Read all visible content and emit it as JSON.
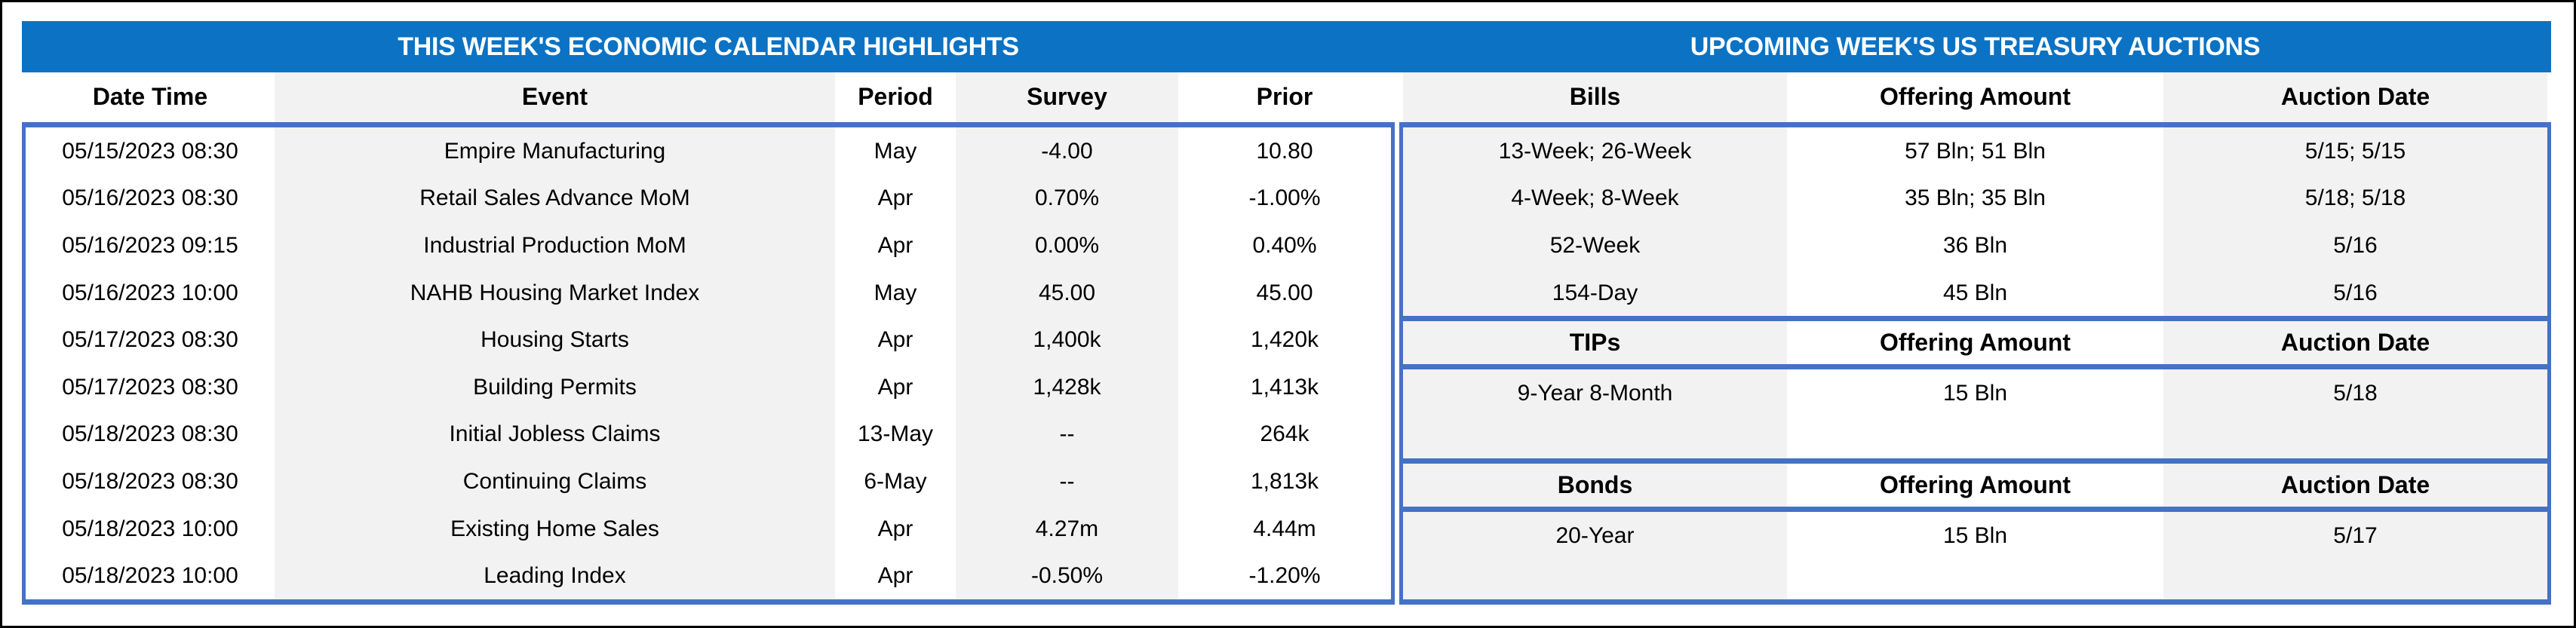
{
  "colors": {
    "title_bar_blue": "#0B72C4",
    "table_border_blue": "#4472C4",
    "stripe_gray": "#F2F2F2",
    "title_text": "#FFFFFF",
    "body_text": "#000000",
    "outer_frame": "#000000"
  },
  "left_table": {
    "title": "THIS WEEK'S ECONOMIC CALENDAR HIGHLIGHTS",
    "columns": [
      "Date Time",
      "Event",
      "Period",
      "Survey",
      "Prior"
    ],
    "rows": [
      [
        "05/15/2023 08:30",
        "Empire Manufacturing",
        "May",
        "-4.00",
        "10.80"
      ],
      [
        "05/16/2023 08:30",
        "Retail Sales Advance MoM",
        "Apr",
        "0.70%",
        "-1.00%"
      ],
      [
        "05/16/2023 09:15",
        "Industrial Production MoM",
        "Apr",
        "0.00%",
        "0.40%"
      ],
      [
        "05/16/2023 10:00",
        "NAHB Housing Market Index",
        "May",
        "45.00",
        "45.00"
      ],
      [
        "05/17/2023 08:30",
        "Housing Starts",
        "Apr",
        "1,400k",
        "1,420k"
      ],
      [
        "05/17/2023 08:30",
        "Building Permits",
        "Apr",
        "1,428k",
        "1,413k"
      ],
      [
        "05/18/2023 08:30",
        "Initial Jobless Claims",
        "13-May",
        "--",
        "264k"
      ],
      [
        "05/18/2023 08:30",
        "Continuing Claims",
        "6-May",
        "--",
        "1,813k"
      ],
      [
        "05/18/2023 10:00",
        "Existing Home Sales",
        "Apr",
        "4.27m",
        "4.44m"
      ],
      [
        "05/18/2023 10:00",
        "Leading Index",
        "Apr",
        "-0.50%",
        "-1.20%"
      ]
    ]
  },
  "right_table": {
    "title": "UPCOMING WEEK'S US TREASURY AUCTIONS",
    "sections": [
      {
        "name": "Bills",
        "header": [
          "Bills",
          "Offering Amount",
          "Auction Date"
        ],
        "rows": [
          [
            "13-Week; 26-Week",
            "57 Bln; 51 Bln",
            "5/15; 5/15"
          ],
          [
            "4-Week; 8-Week",
            "35 Bln; 35 Bln",
            "5/18; 5/18"
          ],
          [
            "52-Week",
            "36 Bln",
            "5/16"
          ],
          [
            "154-Day",
            "45 Bln",
            "5/16"
          ]
        ]
      },
      {
        "name": "TIPs",
        "header": [
          "TIPs",
          "Offering Amount",
          "Auction Date"
        ],
        "rows": [
          [
            "9-Year 8-Month",
            "15 Bln",
            "5/18"
          ]
        ]
      },
      {
        "name": "Bonds",
        "header": [
          "Bonds",
          "Offering Amount",
          "Auction Date"
        ],
        "rows": [
          [
            "20-Year",
            "15 Bln",
            "5/17"
          ]
        ]
      }
    ]
  }
}
